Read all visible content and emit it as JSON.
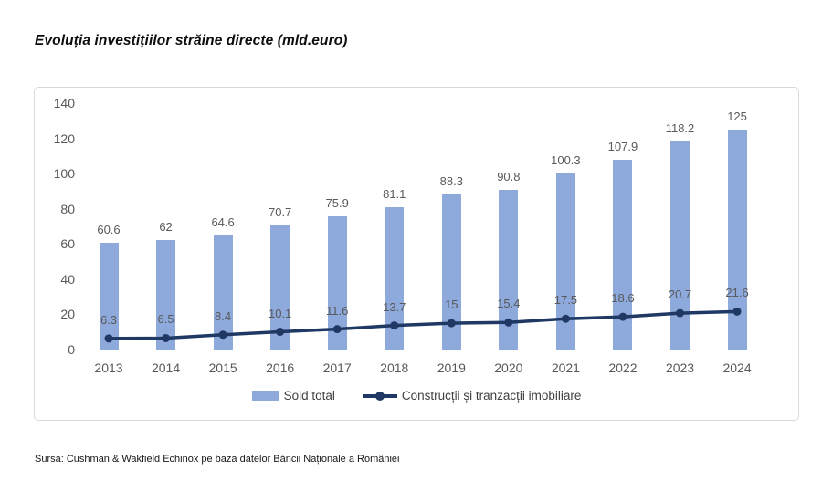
{
  "page": {
    "title": "Evoluția investițiilor străine directe (mld.euro)",
    "source": "Sursa: Cushman & Wakfield Echinox pe baza datelor Băncii Naționale a României"
  },
  "colors": {
    "bar": "#8EA9DB",
    "line": "#1F3864",
    "axis": "#D9D9D9",
    "tick_label": "#595959",
    "data_label": "#595959",
    "legend_text": "#404040",
    "card_border": "#D9D9D9",
    "background": "#FFFFFF"
  },
  "chart_data": {
    "type": "bar",
    "subtype": "bar-line-combo",
    "title": "Evoluția investițiilor străine directe (mld.euro)",
    "categories": [
      "2013",
      "2014",
      "2015",
      "2016",
      "2017",
      "2018",
      "2019",
      "2020",
      "2021",
      "2022",
      "2023",
      "2024"
    ],
    "series": [
      {
        "name": "Sold total",
        "type": "bar",
        "color": "#8EA9DB",
        "values": [
          60.6,
          62,
          64.6,
          70.7,
          75.9,
          81.1,
          88.3,
          90.8,
          100.3,
          107.9,
          118.2,
          125
        ],
        "labels": [
          "60.6",
          "62",
          "64.6",
          "70.7",
          "75.9",
          "81.1",
          "88.3",
          "90.8",
          "100.3",
          "107.9",
          "118.2",
          "125"
        ]
      },
      {
        "name": "Construcții și tranzacții imobiliare",
        "type": "line",
        "color": "#1F3864",
        "marker": "circle",
        "values": [
          6.3,
          6.5,
          8.4,
          10.1,
          11.6,
          13.7,
          15,
          15.4,
          17.5,
          18.6,
          20.7,
          21.6
        ],
        "labels": [
          "6.3",
          "6.5",
          "8.4",
          "10.1",
          "11.6",
          "13.7",
          "15",
          "15.4",
          "17.5",
          "18.6",
          "20.7",
          "21.6"
        ]
      }
    ],
    "xlabel": "",
    "ylabel": "",
    "ylim": [
      0,
      140
    ],
    "yticks": [
      0,
      20,
      40,
      60,
      80,
      100,
      120,
      140
    ],
    "grid": false,
    "data_labels": true,
    "legend_position": "bottom"
  }
}
